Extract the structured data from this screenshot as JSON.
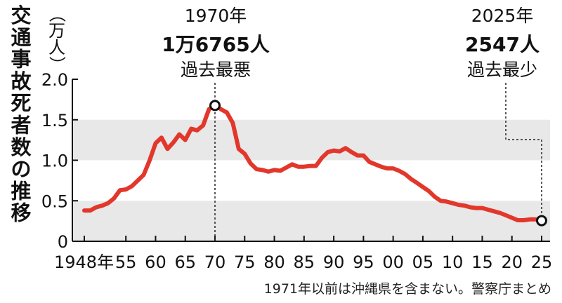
{
  "chart_data": {
    "type": "line",
    "title": "交通事故死者数の推移",
    "ylabel": "（万人）",
    "ylim": [
      0,
      2.0
    ],
    "yticks": [
      "2.0",
      "1.5",
      "1.0",
      "0.5",
      "0"
    ],
    "ytick_values": [
      2.0,
      1.5,
      1.0,
      0.5,
      0
    ],
    "xlim": [
      1948,
      2025
    ],
    "xticks": [
      {
        "year": 1948,
        "label": "1948年"
      },
      {
        "year": 1955,
        "label": "55"
      },
      {
        "year": 1960,
        "label": "60"
      },
      {
        "year": 1965,
        "label": "65"
      },
      {
        "year": 1970,
        "label": "70"
      },
      {
        "year": 1975,
        "label": "75"
      },
      {
        "year": 1980,
        "label": "80"
      },
      {
        "year": 1985,
        "label": "85"
      },
      {
        "year": 1990,
        "label": "90"
      },
      {
        "year": 1995,
        "label": "95"
      },
      {
        "year": 2000,
        "label": "00"
      },
      {
        "year": 2005,
        "label": "05"
      },
      {
        "year": 2010,
        "label": "10"
      },
      {
        "year": 2015,
        "label": "15"
      },
      {
        "year": 2020,
        "label": "20"
      },
      {
        "year": 2025,
        "label": "25"
      }
    ],
    "shaded_bands": [
      [
        1.0,
        1.5
      ],
      [
        0,
        0.5
      ]
    ],
    "series": [
      {
        "color": "#e2372b",
        "x": [
          1948,
          1949,
          1950,
          1951,
          1952,
          1953,
          1954,
          1955,
          1956,
          1957,
          1958,
          1959,
          1960,
          1961,
          1962,
          1963,
          1964,
          1965,
          1966,
          1967,
          1968,
          1969,
          1970,
          1971,
          1972,
          1973,
          1974,
          1975,
          1976,
          1977,
          1978,
          1979,
          1980,
          1981,
          1982,
          1983,
          1984,
          1985,
          1986,
          1987,
          1988,
          1989,
          1990,
          1991,
          1992,
          1993,
          1994,
          1995,
          1996,
          1997,
          1998,
          1999,
          2000,
          2001,
          2002,
          2003,
          2004,
          2005,
          2006,
          2007,
          2008,
          2009,
          2010,
          2011,
          2012,
          2013,
          2014,
          2015,
          2016,
          2017,
          2018,
          2019,
          2020,
          2021,
          2022,
          2023,
          2024,
          2025
        ],
        "y": [
          0.38,
          0.38,
          0.42,
          0.44,
          0.47,
          0.53,
          0.63,
          0.64,
          0.68,
          0.75,
          0.82,
          1.0,
          1.21,
          1.28,
          1.14,
          1.22,
          1.32,
          1.25,
          1.39,
          1.37,
          1.43,
          1.63,
          1.6765,
          1.63,
          1.59,
          1.46,
          1.14,
          1.08,
          0.96,
          0.89,
          0.88,
          0.86,
          0.88,
          0.87,
          0.91,
          0.95,
          0.92,
          0.92,
          0.93,
          0.93,
          1.03,
          1.1,
          1.12,
          1.11,
          1.15,
          1.1,
          1.06,
          1.06,
          0.98,
          0.95,
          0.92,
          0.9,
          0.9,
          0.87,
          0.83,
          0.77,
          0.72,
          0.67,
          0.62,
          0.55,
          0.5,
          0.49,
          0.47,
          0.45,
          0.44,
          0.42,
          0.41,
          0.41,
          0.39,
          0.37,
          0.35,
          0.32,
          0.29,
          0.26,
          0.26,
          0.27,
          0.27,
          0.2547
        ]
      }
    ],
    "annotations": [
      {
        "year": 1970,
        "value": 1.6765,
        "line1": "1970年",
        "line2": "1万6765人",
        "line3": "過去最悪"
      },
      {
        "year": 2025,
        "value": 0.2547,
        "line1": "2025年",
        "line2": "2547人",
        "line3": "過去最少"
      }
    ],
    "footnote": "1971年以前は沖縄県を含まない。警察庁まとめ"
  }
}
